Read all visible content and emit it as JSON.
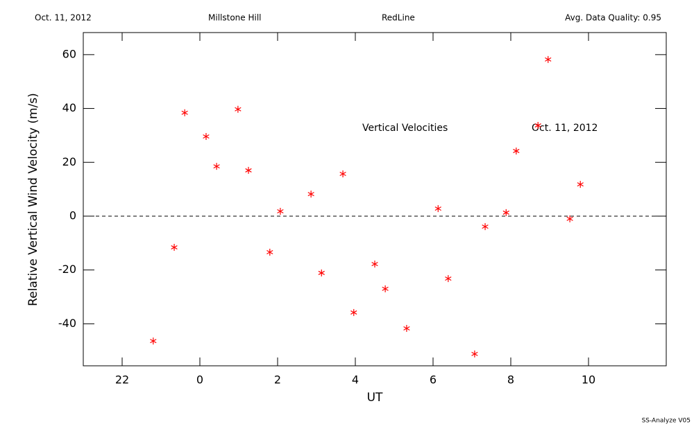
{
  "header": {
    "date": "Oct. 11, 2012",
    "site": "Millstone Hill",
    "line": "RedLine",
    "quality": "Avg. Data Quality: 0.95"
  },
  "footer": "SS-Analyze V05",
  "chart_data": {
    "type": "scatter",
    "xlabel": "UT",
    "ylabel": "Relative Vertical Wind Velocity (m/s)",
    "annotations": [
      "Vertical Velocities",
      "Oct. 11, 2012"
    ],
    "color": "#ff0000",
    "xlim": [
      21,
      36
    ],
    "ylim": [
      -55.6,
      68.2
    ],
    "xticks": [
      {
        "value": 22,
        "label": "22"
      },
      {
        "value": 24,
        "label": "0"
      },
      {
        "value": 26,
        "label": "2"
      },
      {
        "value": 28,
        "label": "4"
      },
      {
        "value": 30,
        "label": "6"
      },
      {
        "value": 32,
        "label": "8"
      },
      {
        "value": 34,
        "label": "10"
      }
    ],
    "yticks": [
      -40,
      -20,
      0,
      20,
      40,
      60
    ],
    "hline": 0,
    "x": [
      22.8,
      23.34,
      23.61,
      24.16,
      24.43,
      24.98,
      25.25,
      25.8,
      26.07,
      26.86,
      27.13,
      27.68,
      27.96,
      28.5,
      28.77,
      29.32,
      30.13,
      30.39,
      31.07,
      31.34,
      31.88,
      32.14,
      32.7,
      32.96,
      33.52,
      33.79
    ],
    "values": [
      -46.4,
      -11.6,
      38.4,
      29.6,
      18.5,
      39.7,
      17.0,
      -13.4,
      1.8,
      8.2,
      -21.1,
      15.7,
      -35.8,
      -17.8,
      -27.0,
      -41.7,
      2.8,
      -23.2,
      -51.2,
      -3.9,
      1.3,
      24.2,
      33.7,
      58.2,
      -1.0,
      11.8
    ]
  }
}
